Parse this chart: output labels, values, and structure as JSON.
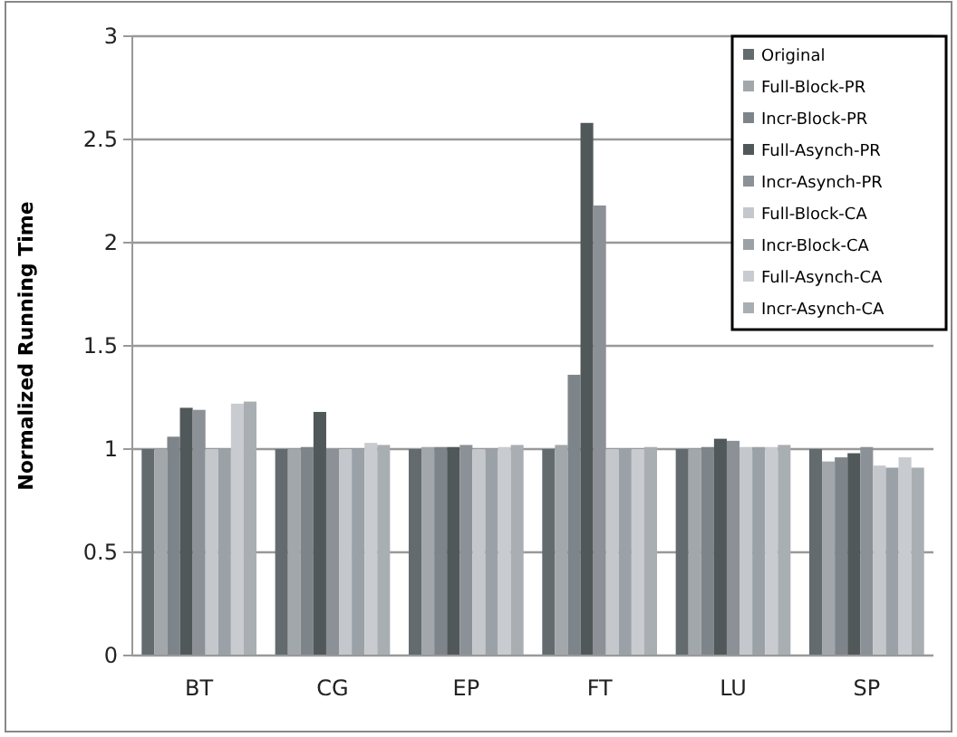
{
  "chart_data": {
    "type": "bar",
    "ylabel": "Normalized Running Time",
    "categories": [
      "BT",
      "CG",
      "EP",
      "FT",
      "LU",
      "SP"
    ],
    "series": [
      {
        "name": "Original",
        "color": "#636b6e",
        "values": [
          1,
          1,
          1,
          1,
          1,
          1
        ]
      },
      {
        "name": "Full-Block-PR",
        "color": "#a2a7ab",
        "values": [
          1,
          1,
          1.01,
          1.02,
          1,
          0.94
        ]
      },
      {
        "name": "Incr-Block-PR",
        "color": "#7e858a",
        "values": [
          1.06,
          1.01,
          1.01,
          1.36,
          1.01,
          0.96
        ]
      },
      {
        "name": "Full-Asynch-PR",
        "color": "#51585a",
        "values": [
          1.2,
          1.18,
          1.01,
          2.58,
          1.05,
          0.98
        ]
      },
      {
        "name": "Incr-Asynch-PR",
        "color": "#8b9196",
        "values": [
          1.19,
          1,
          1.02,
          2.18,
          1.04,
          1.01
        ]
      },
      {
        "name": "Full-Block-CA",
        "color": "#c4c7cb",
        "values": [
          1,
          1,
          1,
          1,
          1.01,
          0.92
        ]
      },
      {
        "name": "Incr-Block-CA",
        "color": "#9ba2a7",
        "values": [
          1,
          1,
          1,
          1,
          1.01,
          0.91
        ]
      },
      {
        "name": "Full-Asynch-CA",
        "color": "#c8cbcf",
        "values": [
          1.22,
          1.03,
          1.01,
          1,
          1.01,
          0.96
        ]
      },
      {
        "name": "Incr-Asynch-CA",
        "color": "#a9aeb2",
        "values": [
          1.23,
          1.02,
          1.02,
          1.01,
          1.02,
          0.91
        ]
      }
    ],
    "ylim": [
      0,
      3
    ],
    "yticks": [
      0,
      0.5,
      1,
      1.5,
      2,
      2.5,
      3
    ],
    "grid": "y",
    "legend": "top right"
  }
}
